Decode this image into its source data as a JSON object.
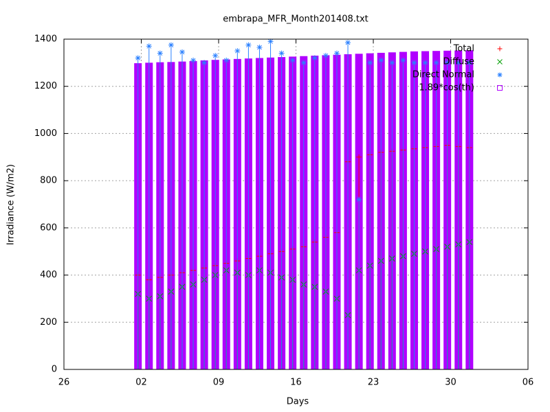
{
  "chart_data": {
    "type": "scatter",
    "title": "embrapa_MFR_Month201408.txt",
    "x_label": "Days",
    "y_label": "Irradiance (W/m2)",
    "xlim": [
      0,
      42
    ],
    "xticks": [
      {
        "value": 0,
        "label": "26"
      },
      {
        "value": 7,
        "label": "02"
      },
      {
        "value": 14,
        "label": "09"
      },
      {
        "value": 21,
        "label": "16"
      },
      {
        "value": 28,
        "label": "23"
      },
      {
        "value": 35,
        "label": "30"
      },
      {
        "value": 42,
        "label": "06"
      }
    ],
    "ylim": [
      0,
      1400
    ],
    "yticks": [
      0,
      200,
      400,
      600,
      800,
      1000,
      1200,
      1400
    ],
    "grid": true,
    "legend": "top-right",
    "x": [
      6.7,
      7.7,
      8.7,
      9.7,
      10.7,
      11.7,
      12.7,
      13.7,
      14.7,
      15.7,
      16.7,
      17.7,
      18.7,
      19.7,
      20.7,
      21.7,
      22.7,
      23.7,
      24.7,
      25.7,
      26.7,
      27.7,
      28.7,
      29.7,
      30.7,
      31.7,
      32.7,
      33.7,
      34.7,
      35.7,
      36.7
    ],
    "series": [
      {
        "name": "Total",
        "color": "#ff0000",
        "marker": "plus",
        "values": [
          400,
          380,
          390,
          400,
          410,
          420,
          430,
          440,
          450,
          460,
          470,
          480,
          490,
          500,
          510,
          520,
          540,
          560,
          580,
          880,
          900,
          910,
          920,
          925,
          930,
          935,
          940,
          945,
          950,
          945,
          940
        ]
      },
      {
        "name": "Diffuse",
        "color": "#00a000",
        "marker": "cross",
        "values": [
          320,
          300,
          310,
          330,
          350,
          360,
          380,
          400,
          420,
          410,
          400,
          420,
          410,
          390,
          380,
          360,
          350,
          330,
          300,
          230,
          420,
          440,
          460,
          470,
          480,
          490,
          500,
          510,
          520,
          530,
          540
        ]
      },
      {
        "name": "Direct Normal",
        "color": "#2a80ff",
        "marker": "star",
        "values": [
          1320,
          1370,
          1340,
          1375,
          1345,
          1310,
          1300,
          1330,
          1310,
          1350,
          1375,
          1365,
          1390,
          1340,
          1310,
          1300,
          1320,
          1330,
          1340,
          1385,
          720,
          1300,
          1310,
          1300,
          1310,
          1300,
          1300,
          1300,
          1300,
          1300,
          1300
        ]
      },
      {
        "name": "1.89*cos(th)",
        "color": "#b000ff",
        "marker": "column",
        "values": [
          1298,
          1300,
          1302,
          1303,
          1305,
          1307,
          1310,
          1312,
          1314,
          1316,
          1318,
          1320,
          1322,
          1324,
          1326,
          1328,
          1330,
          1332,
          1334,
          1336,
          1338,
          1340,
          1342,
          1344,
          1346,
          1348,
          1349,
          1350,
          1351,
          1352,
          1353
        ]
      }
    ]
  }
}
